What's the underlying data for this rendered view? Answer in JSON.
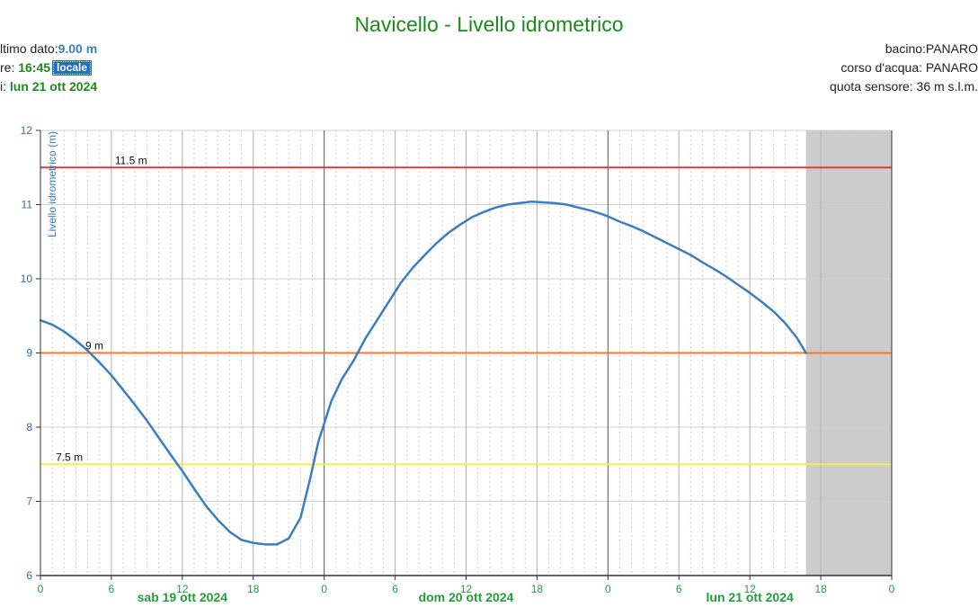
{
  "header": {
    "title": "Navicello - Livello idrometrico",
    "last_label": "ltimo dato:",
    "last_value": "9.00 m",
    "time_label": "re: ",
    "time_value": "16:45",
    "time_badge": "locale",
    "date_label": "i: ",
    "date_value": "lun 21 ott 2024",
    "basin": "bacino:PANARO",
    "river": "corso d'acqua: PANARO",
    "altitude": "quota sensore: 36 m s.l.m."
  },
  "colors": {
    "line": "#3a7ec2",
    "threshold_high": "#e03a3a",
    "threshold_mid": "#f07a30",
    "threshold_low": "#f2f040",
    "forecast_shade": "#cccccc"
  },
  "chart_data": {
    "type": "line",
    "ylabel": "Livello idrometrico (m)",
    "xlabel": "",
    "ylim": [
      6,
      12
    ],
    "yticks": [
      6,
      7,
      8,
      9,
      10,
      11,
      12
    ],
    "x_unit": "hours from sab 19 ott 2024 00:00",
    "xlim": [
      0,
      72
    ],
    "xticks": [
      {
        "h": 0,
        "label": "0"
      },
      {
        "h": 6,
        "label": "6"
      },
      {
        "h": 12,
        "label": "12"
      },
      {
        "h": 18,
        "label": "18"
      },
      {
        "h": 24,
        "label": "0"
      },
      {
        "h": 30,
        "label": "6"
      },
      {
        "h": 36,
        "label": "12"
      },
      {
        "h": 42,
        "label": "18"
      },
      {
        "h": 48,
        "label": "0"
      },
      {
        "h": 54,
        "label": "6"
      },
      {
        "h": 60,
        "label": "12"
      },
      {
        "h": 66,
        "label": "18"
      },
      {
        "h": 72,
        "label": "0"
      }
    ],
    "day_labels": [
      {
        "h": 12,
        "label": "sab 19 ott 2024"
      },
      {
        "h": 36,
        "label": "dom 20 ott 2024"
      },
      {
        "h": 60,
        "label": "lun 21 ott 2024"
      }
    ],
    "thresholds": [
      {
        "value": 11.5,
        "label": "11.5 m",
        "color": "#e03a3a"
      },
      {
        "value": 9,
        "label": "9 m",
        "color": "#f07a30"
      },
      {
        "value": 7.5,
        "label": "7.5 m",
        "color": "#f2f040"
      }
    ],
    "forecast_start_h": 64.75,
    "series": [
      {
        "values": [
          [
            0,
            9.44
          ],
          [
            1,
            9.38
          ],
          [
            2,
            9.29
          ],
          [
            3,
            9.17
          ],
          [
            4,
            9.03
          ],
          [
            5,
            8.87
          ],
          [
            6,
            8.7
          ],
          [
            7,
            8.5
          ],
          [
            8,
            8.3
          ],
          [
            9,
            8.09
          ],
          [
            10,
            7.86
          ],
          [
            11,
            7.63
          ],
          [
            12,
            7.41
          ],
          [
            13,
            7.17
          ],
          [
            14,
            6.94
          ],
          [
            15,
            6.75
          ],
          [
            16,
            6.59
          ],
          [
            17,
            6.48
          ],
          [
            18,
            6.44
          ],
          [
            19,
            6.42
          ],
          [
            20,
            6.42
          ],
          [
            21,
            6.5
          ],
          [
            22,
            6.78
          ],
          [
            22.8,
            7.3
          ],
          [
            23.5,
            7.8
          ],
          [
            24,
            8.05
          ],
          [
            24.6,
            8.35
          ],
          [
            25.5,
            8.65
          ],
          [
            26.5,
            8.9
          ],
          [
            27.5,
            9.2
          ],
          [
            28.5,
            9.45
          ],
          [
            29.5,
            9.7
          ],
          [
            30.5,
            9.95
          ],
          [
            31.5,
            10.15
          ],
          [
            32.5,
            10.32
          ],
          [
            33.5,
            10.48
          ],
          [
            34.5,
            10.62
          ],
          [
            35.5,
            10.73
          ],
          [
            36.5,
            10.83
          ],
          [
            37.5,
            10.9
          ],
          [
            38.5,
            10.96
          ],
          [
            39.5,
            11.0
          ],
          [
            40.5,
            11.02
          ],
          [
            41.5,
            11.04
          ],
          [
            42.5,
            11.03
          ],
          [
            43.5,
            11.02
          ],
          [
            44.5,
            11.0
          ],
          [
            45.5,
            10.96
          ],
          [
            46.5,
            10.92
          ],
          [
            47.5,
            10.87
          ],
          [
            48,
            10.84
          ],
          [
            49,
            10.77
          ],
          [
            50,
            10.71
          ],
          [
            51,
            10.64
          ],
          [
            52,
            10.56
          ],
          [
            53,
            10.48
          ],
          [
            54,
            10.4
          ],
          [
            55,
            10.32
          ],
          [
            56,
            10.22
          ],
          [
            57,
            10.13
          ],
          [
            58,
            10.03
          ],
          [
            59,
            9.92
          ],
          [
            60,
            9.81
          ],
          [
            61,
            9.69
          ],
          [
            62,
            9.56
          ],
          [
            63,
            9.4
          ],
          [
            64,
            9.2
          ],
          [
            64.75,
            9.0
          ]
        ]
      }
    ]
  }
}
